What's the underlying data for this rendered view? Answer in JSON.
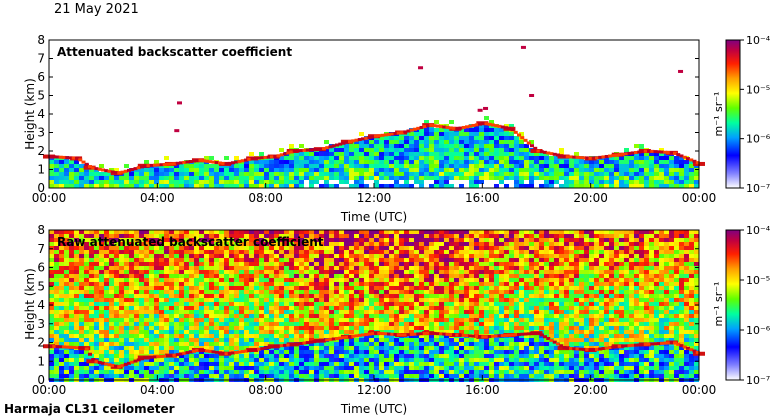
{
  "header": {
    "date": "21 May 2021"
  },
  "footer": {
    "station": "Harmaja CL31 ceilometer"
  },
  "chart_data": [
    {
      "type": "heatmap",
      "title": "Attenuated backscatter coefficient",
      "xlabel": "Time (UTC)",
      "ylabel": "Height (km)",
      "x_ticks": [
        "00:00",
        "04:00",
        "08:00",
        "12:00",
        "16:00",
        "20:00",
        "00:00"
      ],
      "xlim_hours": [
        0,
        24
      ],
      "y_ticks": [
        0,
        1,
        2,
        3,
        4,
        5,
        6,
        7,
        8
      ],
      "ylim": [
        0,
        8
      ],
      "colorbar": {
        "label": "m⁻¹ sr⁻¹",
        "ticks": [
          "10⁻⁷",
          "10⁻⁶",
          "10⁻⁵",
          "10⁻⁴"
        ],
        "range_log10": [
          -7,
          -4
        ]
      },
      "boundary_layer_height_km": [
        [
          0,
          1.7
        ],
        [
          1,
          1.6
        ],
        [
          1.5,
          1.1
        ],
        [
          2.5,
          0.8
        ],
        [
          3.5,
          1.2
        ],
        [
          4.5,
          1.3
        ],
        [
          5.5,
          1.5
        ],
        [
          6.5,
          1.3
        ],
        [
          7.5,
          1.6
        ],
        [
          8.3,
          1.7
        ],
        [
          9,
          2.0
        ],
        [
          10,
          2.1
        ],
        [
          11,
          2.5
        ],
        [
          12,
          2.8
        ],
        [
          13,
          3.0
        ],
        [
          14,
          3.4
        ],
        [
          15,
          3.2
        ],
        [
          16,
          3.5
        ],
        [
          17,
          3.2
        ],
        [
          18,
          2.0
        ],
        [
          19,
          1.7
        ],
        [
          20,
          1.6
        ],
        [
          21,
          1.8
        ],
        [
          22,
          2.0
        ],
        [
          23,
          1.9
        ],
        [
          24,
          1.3
        ]
      ],
      "cloud_returns": [
        {
          "hour": 4.8,
          "height_km": 4.6
        },
        {
          "hour": 4.7,
          "height_km": 3.1
        },
        {
          "hour": 13.7,
          "height_km": 6.5
        },
        {
          "hour": 15.9,
          "height_km": 4.2
        },
        {
          "hour": 16.1,
          "height_km": 4.3
        },
        {
          "hour": 17.5,
          "height_km": 7.6
        },
        {
          "hour": 17.8,
          "height_km": 5.0
        },
        {
          "hour": 23.3,
          "height_km": 6.3
        }
      ]
    },
    {
      "type": "heatmap",
      "title": "Raw attenuated backscatter coefficient",
      "xlabel": "Time (UTC)",
      "ylabel": "Height (km)",
      "x_ticks": [
        "00:00",
        "04:00",
        "08:00",
        "12:00",
        "16:00",
        "20:00",
        "00:00"
      ],
      "xlim_hours": [
        0,
        24
      ],
      "y_ticks": [
        0,
        1,
        2,
        3,
        4,
        5,
        6,
        7,
        8
      ],
      "ylim": [
        0,
        8
      ],
      "colorbar": {
        "label": "m⁻¹ sr⁻¹",
        "ticks": [
          "10⁻⁷",
          "10⁻⁶",
          "10⁻⁵",
          "10⁻⁴"
        ],
        "range_log10": [
          -7,
          -4
        ]
      },
      "boundary_layer_height_km": [
        [
          0,
          1.8
        ],
        [
          1.3,
          1.7
        ],
        [
          1.6,
          1.0
        ],
        [
          2.5,
          0.7
        ],
        [
          3.5,
          1.2
        ],
        [
          4.5,
          1.3
        ],
        [
          5.5,
          1.6
        ],
        [
          6.5,
          1.4
        ],
        [
          7.5,
          1.6
        ],
        [
          8.3,
          1.8
        ],
        [
          9,
          1.9
        ],
        [
          10,
          2.1
        ],
        [
          11,
          2.3
        ],
        [
          12,
          2.5
        ],
        [
          13,
          2.4
        ],
        [
          14,
          2.5
        ],
        [
          15,
          2.4
        ],
        [
          16,
          2.3
        ],
        [
          17,
          2.4
        ],
        [
          18,
          2.5
        ],
        [
          19,
          1.7
        ],
        [
          20,
          1.6
        ],
        [
          21,
          1.8
        ],
        [
          22,
          1.9
        ],
        [
          23,
          2.0
        ],
        [
          24,
          1.4
        ]
      ]
    }
  ]
}
